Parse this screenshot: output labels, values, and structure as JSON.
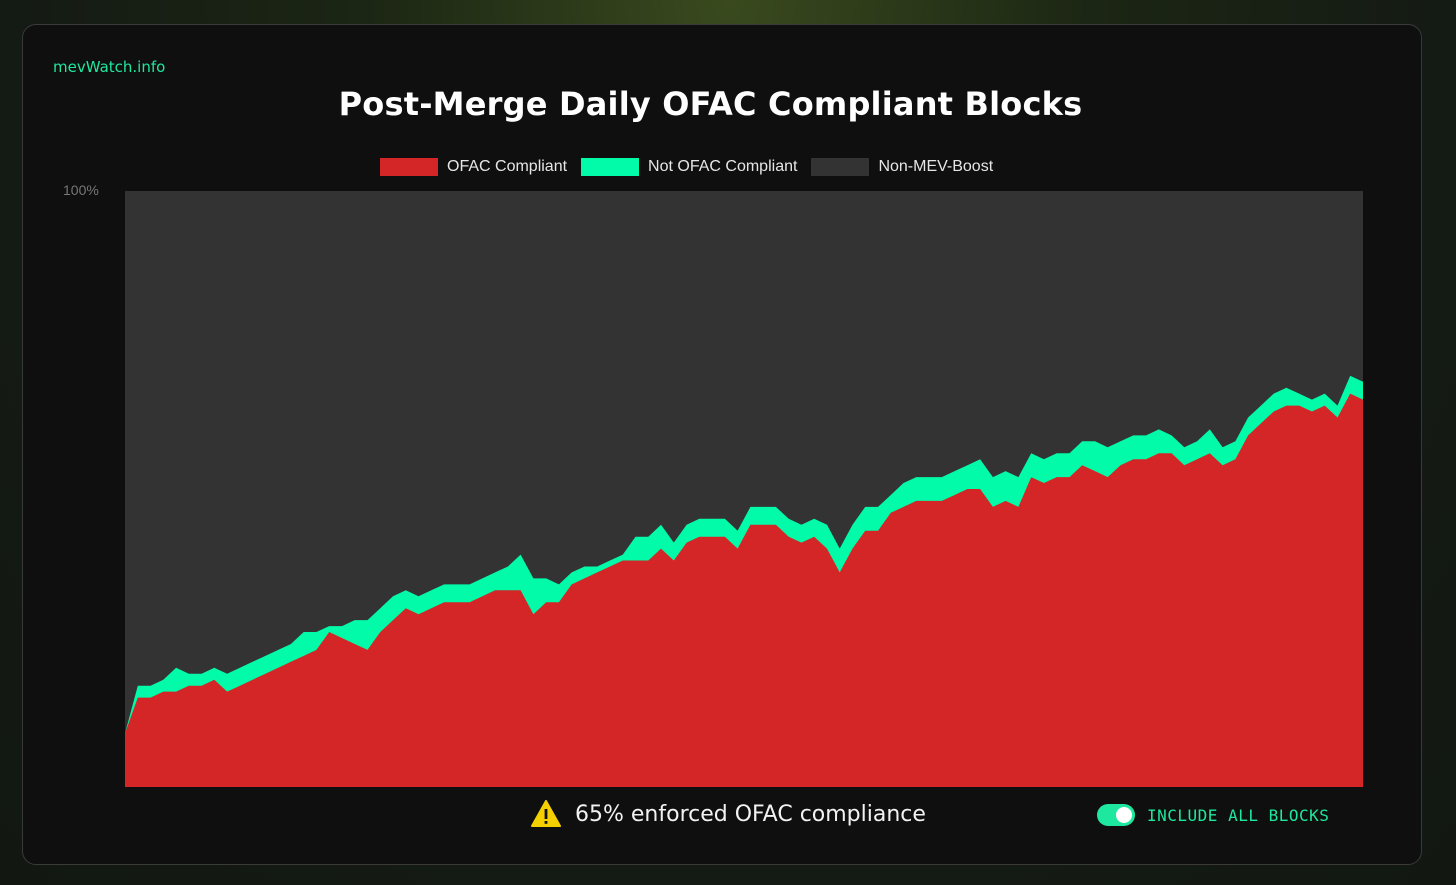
{
  "brand": "mevWatch.info",
  "colors": {
    "ofac_compliant": "#d42626",
    "not_ofac_compliant": "#02fba8",
    "non_mev_boost": "#333333",
    "accent": "#1ee8a0"
  },
  "footer": {
    "message": "65% enforced OFAC compliance",
    "warning_icon": "warning-icon",
    "toggle_label": "INCLUDE ALL BLOCKS",
    "toggle_on": true
  },
  "chart_data": {
    "type": "area",
    "stacked": true,
    "title": "Post-Merge Daily OFAC Compliant Blocks",
    "ylim": [
      0,
      100
    ],
    "y_ticks": [
      "100%"
    ],
    "legend_position": "top",
    "grid": false,
    "series": [
      {
        "name": "OFAC Compliant",
        "values": [
          9,
          15,
          15,
          16,
          16,
          17,
          17,
          18,
          16,
          17,
          18,
          19,
          20,
          21,
          22,
          23,
          26,
          25,
          24,
          23,
          26,
          28,
          30,
          29,
          30,
          31,
          31,
          31,
          32,
          33,
          33,
          33,
          29,
          31,
          31,
          34,
          35,
          36,
          37,
          38,
          38,
          38,
          40,
          38,
          41,
          42,
          42,
          42,
          40,
          44,
          44,
          44,
          42,
          41,
          42,
          40,
          36,
          40,
          43,
          43,
          46,
          47,
          48,
          48,
          48,
          49,
          50,
          50,
          47,
          48,
          47,
          52,
          51,
          52,
          52,
          54,
          53,
          52,
          54,
          55,
          55,
          56,
          56,
          54,
          55,
          56,
          54,
          55,
          59,
          61,
          63,
          64,
          64,
          63,
          64,
          62,
          66,
          65
        ]
      },
      {
        "name": "Not OFAC Compliant",
        "values": [
          0,
          2,
          2,
          2,
          4,
          2,
          2,
          2,
          3,
          3,
          3,
          3,
          3,
          3,
          4,
          3,
          1,
          2,
          4,
          5,
          4,
          4,
          3,
          3,
          3,
          3,
          3,
          3,
          3,
          3,
          4,
          6,
          6,
          4,
          3,
          2,
          2,
          1,
          1,
          1,
          4,
          4,
          4,
          3,
          3,
          3,
          3,
          3,
          3,
          3,
          3,
          3,
          3,
          3,
          3,
          4,
          4,
          4,
          4,
          4,
          3,
          4,
          4,
          4,
          4,
          4,
          4,
          5,
          5,
          5,
          5,
          4,
          4,
          4,
          4,
          4,
          5,
          5,
          4,
          4,
          4,
          4,
          3,
          3,
          3,
          4,
          3,
          3,
          3,
          3,
          3,
          3,
          2,
          2,
          2,
          2,
          3,
          3
        ]
      },
      {
        "name": "Non-MEV-Boost",
        "values": []
      }
    ]
  }
}
